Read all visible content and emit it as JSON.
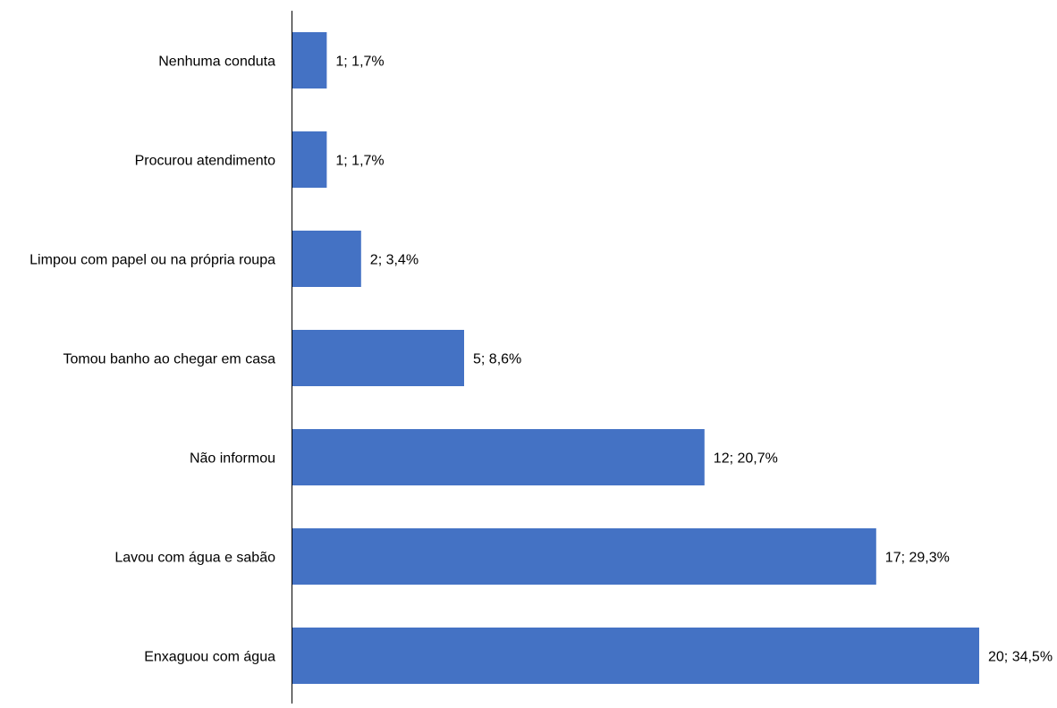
{
  "chart_data": {
    "type": "bar",
    "orientation": "horizontal",
    "title": "",
    "xlabel": "",
    "ylabel": "",
    "grid": false,
    "legend": "none",
    "bar_color": "#4472C4",
    "axis_color": "#000000",
    "xlim": [
      0,
      20
    ],
    "categories": [
      "Nenhuma conduta",
      "Procurou atendimento",
      "Limpou com papel ou na própria roupa",
      "Tomou banho ao chegar em casa",
      "Não informou",
      "Lavou com água e sabão",
      "Enxaguou com água"
    ],
    "values": [
      1,
      1,
      2,
      5,
      12,
      17,
      20
    ],
    "percentages": [
      1.7,
      1.7,
      3.4,
      8.6,
      20.7,
      29.3,
      34.5
    ],
    "data_labels": [
      "1; 1,7%",
      "1; 1,7%",
      "2; 3,4%",
      "5; 8,6%",
      "12; 20,7%",
      "17; 29,3%",
      "20; 34,5%"
    ]
  }
}
